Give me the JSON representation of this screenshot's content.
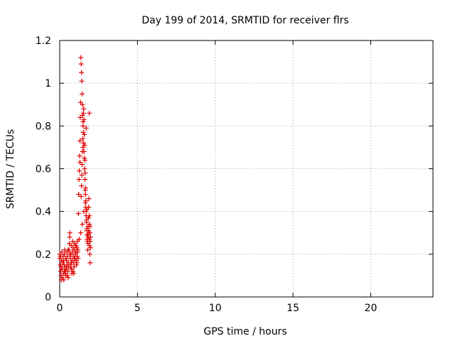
{
  "chart_data": {
    "type": "scatter",
    "title": "Day 199 of 2014, SRMTID for receiver flrs",
    "xlabel": "GPS time / hours",
    "ylabel": "SRMTID / TECUs",
    "xlim": [
      0,
      24
    ],
    "ylim": [
      0,
      1.2
    ],
    "xticks": [
      0,
      5,
      10,
      15,
      20
    ],
    "yticks": [
      0,
      0.2,
      0.4,
      0.6,
      0.8,
      1,
      1.2
    ],
    "xtick_labels": [
      "0",
      "5",
      "10",
      "15",
      "20"
    ],
    "ytick_labels": [
      "0",
      "0.2",
      "0.4",
      "0.6",
      "0.8",
      "1",
      "1.2"
    ],
    "grid": true,
    "marker": "+",
    "series": [
      {
        "name": "SRMTID",
        "color": "#e00000",
        "x": [
          0.0,
          0.02,
          0.04,
          0.06,
          0.08,
          0.1,
          0.12,
          0.14,
          0.16,
          0.18,
          0.2,
          0.22,
          0.24,
          0.26,
          0.28,
          0.3,
          0.32,
          0.34,
          0.36,
          0.38,
          0.4,
          0.42,
          0.44,
          0.46,
          0.48,
          0.5,
          0.52,
          0.54,
          0.56,
          0.58,
          0.6,
          0.62,
          0.64,
          0.66,
          0.68,
          0.7,
          0.72,
          0.74,
          0.76,
          0.78,
          0.8,
          0.82,
          0.84,
          0.86,
          0.88,
          0.9,
          0.92,
          0.94,
          0.96,
          0.98,
          1.0,
          1.02,
          1.04,
          1.06,
          1.08,
          1.1,
          1.12,
          1.14,
          1.16,
          1.18,
          1.2,
          1.22,
          1.24,
          1.26,
          1.28,
          1.3,
          1.32,
          1.34,
          1.36,
          1.38,
          1.4,
          1.42,
          1.44,
          1.46,
          1.48,
          1.5,
          1.52,
          1.54,
          1.56,
          1.58,
          1.6,
          1.62,
          1.64,
          1.66,
          1.68,
          1.7,
          1.72,
          1.74,
          1.76,
          1.78,
          1.8,
          1.82,
          1.84,
          1.86,
          1.88,
          1.9,
          1.92,
          1.94,
          1.96,
          1.98,
          0.05,
          0.15,
          0.25,
          0.35,
          0.45,
          0.55,
          0.65,
          0.75,
          0.85,
          0.95,
          1.05,
          1.15,
          1.25,
          1.35,
          1.45,
          1.55,
          1.65,
          1.75,
          1.85,
          1.95,
          0.1,
          0.3,
          0.5,
          0.7,
          0.9,
          1.1,
          1.3,
          1.5,
          1.7,
          1.9,
          1.38,
          1.4,
          1.42,
          1.44,
          1.46,
          1.48,
          1.5,
          1.52,
          1.54,
          1.56,
          1.58,
          1.6,
          1.62,
          1.64,
          1.66,
          1.68,
          1.7,
          1.72,
          1.74,
          1.76,
          1.8,
          1.82,
          1.84,
          1.86,
          1.88,
          1.9,
          1.92,
          1.94,
          1.96,
          1.98
        ],
        "y": [
          0.2,
          0.18,
          0.15,
          0.12,
          0.1,
          0.14,
          0.17,
          0.21,
          0.13,
          0.09,
          0.16,
          0.19,
          0.11,
          0.08,
          0.15,
          0.2,
          0.22,
          0.14,
          0.12,
          0.18,
          0.1,
          0.13,
          0.17,
          0.21,
          0.15,
          0.19,
          0.12,
          0.09,
          0.16,
          0.14,
          0.22,
          0.25,
          0.28,
          0.3,
          0.18,
          0.15,
          0.2,
          0.24,
          0.13,
          0.11,
          0.17,
          0.21,
          0.26,
          0.23,
          0.19,
          0.16,
          0.14,
          0.22,
          0.25,
          0.18,
          0.2,
          0.24,
          0.21,
          0.17,
          0.15,
          0.23,
          0.19,
          0.26,
          0.22,
          0.18,
          0.39,
          0.48,
          0.55,
          0.59,
          0.66,
          0.73,
          0.84,
          0.91,
          1.12,
          1.09,
          1.05,
          1.01,
          0.95,
          0.9,
          0.85,
          0.82,
          0.77,
          0.72,
          0.68,
          0.65,
          0.6,
          0.55,
          0.5,
          0.48,
          0.42,
          0.38,
          0.35,
          0.32,
          0.29,
          0.26,
          0.22,
          0.25,
          0.28,
          0.31,
          0.3,
          0.27,
          0.24,
          0.2,
          0.16,
          0.23,
          0.19,
          0.13,
          0.17,
          0.11,
          0.14,
          0.22,
          0.2,
          0.16,
          0.12,
          0.18,
          0.24,
          0.21,
          0.27,
          0.3,
          0.34,
          0.4,
          0.44,
          0.41,
          0.37,
          0.33,
          0.08,
          0.12,
          0.1,
          0.14,
          0.11,
          0.16,
          0.63,
          0.7,
          0.79,
          0.86,
          0.47,
          0.52,
          0.57,
          0.62,
          0.68,
          0.74,
          0.8,
          0.86,
          0.88,
          0.83,
          0.76,
          0.71,
          0.64,
          0.58,
          0.51,
          0.45,
          0.4,
          0.36,
          0.31,
          0.27,
          0.29,
          0.33,
          0.37,
          0.42,
          0.46,
          0.38,
          0.34,
          0.3,
          0.26,
          0.28
        ]
      }
    ]
  }
}
